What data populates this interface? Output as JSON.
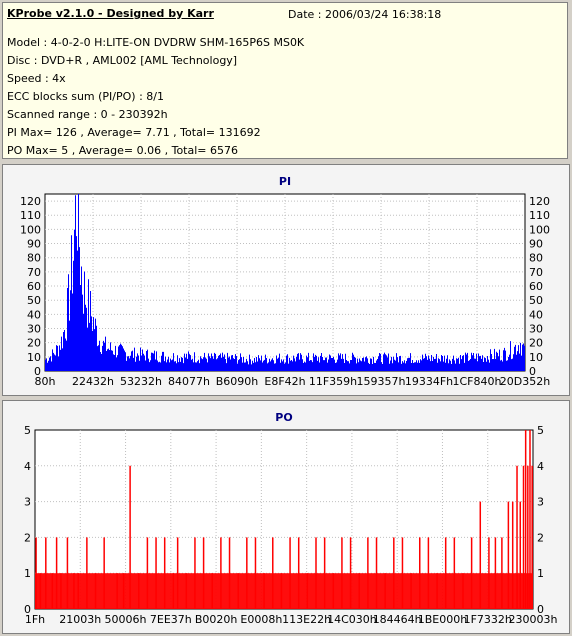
{
  "header": {
    "title": "KProbe v2.1.0 - Designed by Karr",
    "date": "Date : 2006/03/24 16:38:18",
    "lines": [
      "Model : 4-0-2-0 H:LITE-ON DVDRW SHM-165P6S MS0K",
      "Disc : DVD+R , AML002 [AML Technology]",
      "Speed : 4x",
      "ECC blocks sum (PI/PO) : 8/1",
      "Scanned range : 0 - 230392h",
      "PI Max= 126 , Average= 7.71 , Total= 131692",
      "PO Max= 5 , Average= 0.06 , Total= 6576"
    ]
  },
  "colors": {
    "pi_series": "#0000ff",
    "po_series": "#ff0000",
    "axis_title": "#000080",
    "plot_bg": "#ffffff",
    "grid": "#c0c0c0"
  },
  "chart_data": [
    {
      "type": "area",
      "title": "PI",
      "ylim": [
        0,
        125
      ],
      "yticks": [
        0,
        10,
        20,
        30,
        40,
        50,
        60,
        70,
        80,
        90,
        100,
        110,
        120
      ],
      "xlim": [
        0,
        230392
      ],
      "xtick_labels": [
        "80h",
        "22432h",
        "53232h",
        "84077h",
        "B6090h",
        "E8F42h",
        "11F359h",
        "159357h",
        "19334Fh",
        "1CF840h",
        "20D352h"
      ],
      "max": 126,
      "average": 7.71,
      "total": 131692,
      "series": [
        {
          "values": [
            [
              0,
              8
            ],
            [
              2000,
              10
            ],
            [
              4000,
              12
            ],
            [
              6000,
              16
            ],
            [
              8000,
              22
            ],
            [
              10000,
              35
            ],
            [
              12000,
              60
            ],
            [
              13500,
              85
            ],
            [
              14500,
              110
            ],
            [
              15200,
              126
            ],
            [
              16000,
              100
            ],
            [
              17000,
              75
            ],
            [
              18000,
              60
            ],
            [
              20000,
              50
            ],
            [
              22000,
              40
            ],
            [
              24000,
              30
            ],
            [
              26000,
              22
            ],
            [
              28000,
              18
            ],
            [
              30000,
              16
            ],
            [
              35000,
              14
            ],
            [
              40000,
              12
            ],
            [
              50000,
              11
            ],
            [
              60000,
              10
            ],
            [
              70000,
              10
            ],
            [
              80000,
              9
            ],
            [
              90000,
              9
            ],
            [
              100000,
              8
            ],
            [
              110000,
              9
            ],
            [
              120000,
              9
            ],
            [
              130000,
              9
            ],
            [
              140000,
              9
            ],
            [
              150000,
              9
            ],
            [
              160000,
              9
            ],
            [
              170000,
              9
            ],
            [
              180000,
              9
            ],
            [
              190000,
              9
            ],
            [
              200000,
              9
            ],
            [
              210000,
              10
            ],
            [
              220000,
              12
            ],
            [
              225000,
              16
            ],
            [
              228000,
              20
            ],
            [
              230392,
              14
            ]
          ]
        }
      ],
      "grid": true
    },
    {
      "type": "bar",
      "title": "PO",
      "ylim": [
        0,
        5
      ],
      "yticks": [
        0,
        1,
        2,
        3,
        4,
        5
      ],
      "xlim": [
        0,
        230392
      ],
      "xtick_labels": [
        "1Fh",
        "21003h",
        "50006h",
        "7EE37h",
        "B0020h",
        "E0008h",
        "113E22h",
        "14C030h",
        "184464h",
        "1BE000h",
        "1F7332h",
        "230003h"
      ],
      "max": 5,
      "average": 0.06,
      "total": 6576,
      "series": [
        {
          "spikes": [
            [
              500,
              2
            ],
            [
              2500,
              1
            ],
            [
              5000,
              2
            ],
            [
              8000,
              1
            ],
            [
              10000,
              2
            ],
            [
              12000,
              1
            ],
            [
              15000,
              2
            ],
            [
              18000,
              1
            ],
            [
              20000,
              1
            ],
            [
              24000,
              2
            ],
            [
              28000,
              1
            ],
            [
              32000,
              2
            ],
            [
              38000,
              1
            ],
            [
              41000,
              1
            ],
            [
              44000,
              4
            ],
            [
              48000,
              1
            ],
            [
              52000,
              2
            ],
            [
              56000,
              2
            ],
            [
              60000,
              2
            ],
            [
              64000,
              1
            ],
            [
              66000,
              2
            ],
            [
              70000,
              1
            ],
            [
              74000,
              2
            ],
            [
              78000,
              2
            ],
            [
              82000,
              1
            ],
            [
              86000,
              2
            ],
            [
              90000,
              2
            ],
            [
              94000,
              1
            ],
            [
              98000,
              2
            ],
            [
              102000,
              2
            ],
            [
              106000,
              1
            ],
            [
              110000,
              2
            ],
            [
              114000,
              1
            ],
            [
              118000,
              2
            ],
            [
              122000,
              2
            ],
            [
              126000,
              1
            ],
            [
              130000,
              2
            ],
            [
              134000,
              2
            ],
            [
              138000,
              1
            ],
            [
              142000,
              2
            ],
            [
              146000,
              2
            ],
            [
              150000,
              1
            ],
            [
              154000,
              2
            ],
            [
              158000,
              2
            ],
            [
              162000,
              1
            ],
            [
              166000,
              2
            ],
            [
              170000,
              2
            ],
            [
              174000,
              1
            ],
            [
              178000,
              2
            ],
            [
              182000,
              2
            ],
            [
              186000,
              1
            ],
            [
              190000,
              2
            ],
            [
              194000,
              2
            ],
            [
              198000,
              1
            ],
            [
              202000,
              2
            ],
            [
              206000,
              3
            ],
            [
              210000,
              2
            ],
            [
              213000,
              2
            ],
            [
              216000,
              2
            ],
            [
              219000,
              3
            ],
            [
              221000,
              3
            ],
            [
              223000,
              4
            ],
            [
              224500,
              3
            ],
            [
              226000,
              4
            ],
            [
              227000,
              5
            ],
            [
              228000,
              4
            ],
            [
              229000,
              5
            ],
            [
              230000,
              4
            ]
          ],
          "baseline_start": 0,
          "baseline_end": 230392,
          "baseline_value": 1
        }
      ],
      "grid": true
    }
  ]
}
